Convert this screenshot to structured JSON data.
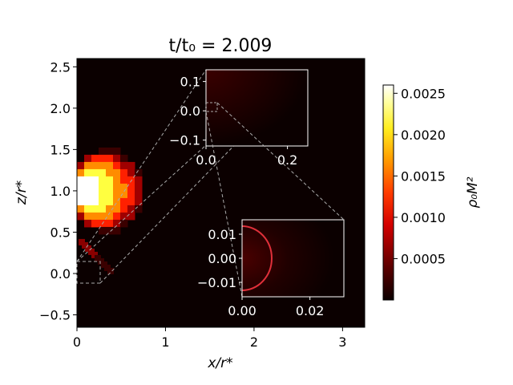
{
  "chart_data": {
    "type": "heatmap",
    "title": "t/t₀ = 2.009",
    "xlabel": "x/r*",
    "ylabel": "z/r*",
    "xlim": [
      0,
      3.25
    ],
    "ylim": [
      -0.65,
      2.6
    ],
    "xticks": [
      "0",
      "1",
      "2",
      "3"
    ],
    "yticks": [
      "−0.5",
      "0.0",
      "0.5",
      "1.0",
      "1.5",
      "2.0",
      "2.5"
    ],
    "colormap": "hot",
    "colorbar": {
      "label": "ρ₀M²",
      "ticks": [
        "0.0005",
        "0.0010",
        "0.0015",
        "0.0020",
        "0.0025"
      ],
      "range": [
        0,
        0.0026
      ]
    },
    "density_lobe": {
      "center": [
        0,
        1.0
      ],
      "peak_value": 0.0026,
      "description_colors": [
        "#ffffff",
        "#ffff40",
        "#ff8c00",
        "#ff2000",
        "#a00000",
        "#0a0000"
      ]
    },
    "inset_1": {
      "xlim": [
        0,
        0.25
      ],
      "ylim": [
        -0.12,
        0.14
      ],
      "xticks": [
        "0.0",
        "0.2"
      ],
      "yticks": [
        "0.1",
        "0.0",
        "−0.1"
      ]
    },
    "inset_2": {
      "xlim": [
        0,
        0.03
      ],
      "ylim": [
        -0.016,
        0.016
      ],
      "xticks": [
        "0.00",
        "0.02"
      ],
      "yticks": [
        "0.01",
        "0.00",
        "−0.01"
      ],
      "circle_radius": 0.009
    }
  }
}
